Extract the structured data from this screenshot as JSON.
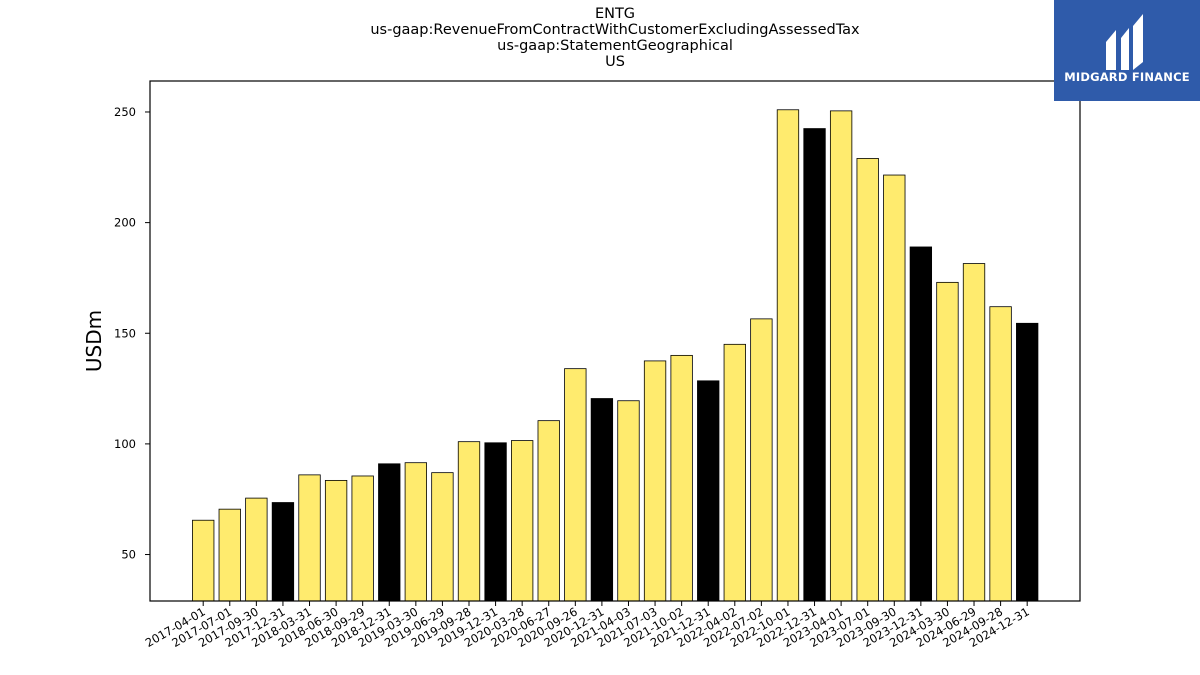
{
  "title": {
    "line1": "ENTG",
    "line2": "us-gaap:RevenueFromContractWithCustomerExcludingAssessedTax",
    "line3": "us-gaap:StatementGeographical",
    "line4": "US"
  },
  "logo": {
    "text": "MIDGARD FINANCE",
    "background": "#2f5baa"
  },
  "colors": {
    "regular_bar": "#ffeb6e",
    "year_end_bar": "#000000",
    "edge": "#000000"
  },
  "chart_data": {
    "type": "bar",
    "ylabel": "USDm",
    "xlabel": "",
    "ylim": [
      29,
      264
    ],
    "yticks": [
      50,
      100,
      150,
      200,
      250
    ],
    "grid": false,
    "categories": [
      "2017-04-01",
      "2017-07-01",
      "2017-09-30",
      "2017-12-31",
      "2018-03-31",
      "2018-06-30",
      "2018-09-29",
      "2018-12-31",
      "2019-03-30",
      "2019-06-29",
      "2019-09-28",
      "2019-12-31",
      "2020-03-28",
      "2020-06-27",
      "2020-09-26",
      "2020-12-31",
      "2021-04-03",
      "2021-07-03",
      "2021-10-02",
      "2021-12-31",
      "2022-04-02",
      "2022-07-02",
      "2022-10-01",
      "2022-12-31",
      "2023-04-01",
      "2023-07-01",
      "2023-09-30",
      "2023-12-31",
      "2024-03-30",
      "2024-06-29",
      "2024-09-28",
      "2024-12-31"
    ],
    "values": [
      65.5,
      70.5,
      75.5,
      73.5,
      86,
      83.5,
      85.5,
      91,
      91.5,
      87,
      101,
      100.5,
      101.5,
      110.5,
      134,
      120.5,
      119.5,
      137.5,
      140,
      128.5,
      145,
      156.5,
      251,
      242.5,
      250.5,
      229,
      221.5,
      189,
      173,
      181.5,
      162,
      154.5
    ],
    "year_end": [
      false,
      false,
      false,
      true,
      false,
      false,
      false,
      true,
      false,
      false,
      false,
      true,
      false,
      false,
      false,
      true,
      false,
      false,
      false,
      true,
      false,
      false,
      false,
      true,
      false,
      false,
      false,
      true,
      false,
      false,
      false,
      true
    ]
  }
}
